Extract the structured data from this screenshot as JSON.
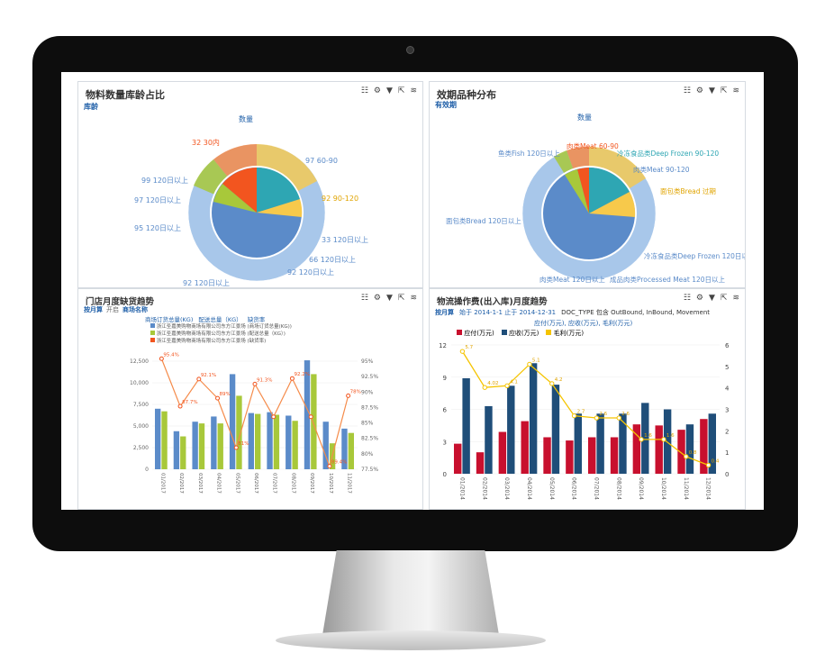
{
  "p1": {
    "title": "物料数量库龄占比",
    "filter": "库龄",
    "measure": "数量",
    "labels": [
      "32 30内",
      "97 60-90",
      "99 120日以上",
      "97 120日以上",
      "95 120日以上",
      "92 90-120",
      "33 120日以上",
      "66 120日以上",
      "92 120日以上",
      "92 120日以上"
    ],
    "colors": {
      "blue": "#5b8bc9",
      "orange": "#f58b4a",
      "red": "#f2551f",
      "teal": "#2ea6b3",
      "yellow": "#f7c94b",
      "green": "#a8c83a",
      "light": "#a8c7ea"
    }
  },
  "p2": {
    "title": "效期品种分布",
    "filter": "有效期",
    "measure": "数量",
    "labels": [
      "肉类Meat 60-90",
      "冷冻食品类Deep Frozen 90-120",
      "鱼类Fish 120日以上",
      "肉类Meat 90-120",
      "面包类Bread 过期",
      "面包类Bread 120日以上",
      "冷冻食品类Deep Frozen 120日以上",
      "肉类Meat 120日以上",
      "成品肉类Processed Meat 120日以上"
    ]
  },
  "p3": {
    "title": "门店月度缺货趋势",
    "filter1": "按月算",
    "filter2": "开启",
    "filter3": "商场名称",
    "legend_header": [
      "商场订货总量(KG)",
      "配送总量（KG）",
      "缺货率"
    ],
    "legend": [
      "浙江圣嘉美购物商场有限公司东方江景场 (商场订货总量(KG))",
      "浙江圣嘉美购物商场有限公司东方江景场 (配送总量（KG）)",
      "浙江圣嘉美购物商场有限公司东方江景场 (缺货率)"
    ],
    "yleft": [
      "12,500",
      "10,000",
      "7,500",
      "5,000",
      "2,500",
      "0"
    ],
    "yright": [
      "95%",
      "92.5%",
      "90%",
      "87.5%",
      "85%",
      "82.5%",
      "80%",
      "77.5%"
    ],
    "rate_labels": [
      "95.4%",
      "87.7%",
      "92.1%",
      "89%",
      "81%",
      "91.3%",
      "92.2%",
      "89.4%",
      "78%"
    ],
    "months": [
      "01/2017",
      "02/2017",
      "03/2017",
      "04/2017",
      "05/2017",
      "06/2017",
      "07/2017",
      "08/2017",
      "09/2017",
      "10/2017",
      "11/2017"
    ]
  },
  "p4": {
    "title": "物流操作费(出入库)月度趋势",
    "filter1": "按月算",
    "filter2": "始于 2014-1-1 止于 2014-12-31",
    "filter3": "DOC_TYPE 包含 OutBound, InBound, Movement",
    "subtitle": "应付(万元), 应收(万元), 毛利(万元)",
    "legend": [
      "应付(万元)",
      "应收(万元)",
      "毛利(万元)"
    ],
    "yleft": [
      "12",
      "9",
      "6",
      "3",
      "0"
    ],
    "yright": [
      "6",
      "5",
      "4",
      "3",
      "2",
      "1",
      "0"
    ],
    "point_labels": [
      "5.7",
      "4.02",
      "4.1",
      "5.1",
      "4.2",
      "2.7",
      "2.6",
      "2.6",
      "1.6",
      "1.6",
      "0.8",
      "0.4"
    ],
    "months": [
      "01/2014",
      "02/2014",
      "03/2014",
      "04/2014",
      "05/2014",
      "06/2014",
      "07/2014",
      "08/2014",
      "09/2014",
      "10/2014",
      "11/2014",
      "12/2014"
    ]
  },
  "chart_data": [
    {
      "type": "bar",
      "title": "门店月度缺货趋势",
      "categories": [
        "01/2017",
        "02/2017",
        "03/2017",
        "04/2017",
        "05/2017",
        "06/2017",
        "07/2017",
        "08/2017",
        "09/2017",
        "10/2017",
        "11/2017"
      ],
      "series": [
        {
          "name": "商场订货总量(KG)",
          "values": [
            7000,
            4400,
            5500,
            6100,
            11000,
            6500,
            6600,
            6200,
            12600,
            5500,
            4700
          ]
        },
        {
          "name": "配送总量（KG）",
          "values": [
            6700,
            3800,
            5300,
            5300,
            8500,
            6400,
            6300,
            5600,
            11000,
            3000,
            4200
          ]
        },
        {
          "name": "缺货率",
          "values": [
            95.4,
            87.7,
            92.1,
            89,
            81,
            91.3,
            86,
            92.2,
            86,
            78,
            89.4
          ]
        }
      ],
      "ylim": [
        0,
        12500
      ],
      "y2lim": [
        77.5,
        95
      ]
    },
    {
      "type": "bar",
      "title": "物流操作费(出入库)月度趋势",
      "categories": [
        "01/2014",
        "02/2014",
        "03/2014",
        "04/2014",
        "05/2014",
        "06/2014",
        "07/2014",
        "08/2014",
        "09/2014",
        "10/2014",
        "11/2014",
        "12/2014"
      ],
      "series": [
        {
          "name": "应付(万元)",
          "values": [
            2.8,
            2.0,
            3.9,
            4.9,
            3.4,
            3.1,
            3.4,
            3.4,
            4.6,
            4.5,
            4.1,
            5.1
          ]
        },
        {
          "name": "应收(万元)",
          "values": [
            8.9,
            6.3,
            8.2,
            10.3,
            8.3,
            5.6,
            5.6,
            5.6,
            6.6,
            6.0,
            4.6,
            5.6
          ]
        },
        {
          "name": "毛利(万元)",
          "values": [
            5.7,
            4.02,
            4.1,
            5.1,
            4.2,
            2.7,
            2.6,
            2.6,
            1.6,
            1.6,
            0.8,
            0.4
          ]
        }
      ],
      "ylim": [
        0,
        12
      ],
      "y2lim": [
        0,
        6
      ]
    }
  ]
}
